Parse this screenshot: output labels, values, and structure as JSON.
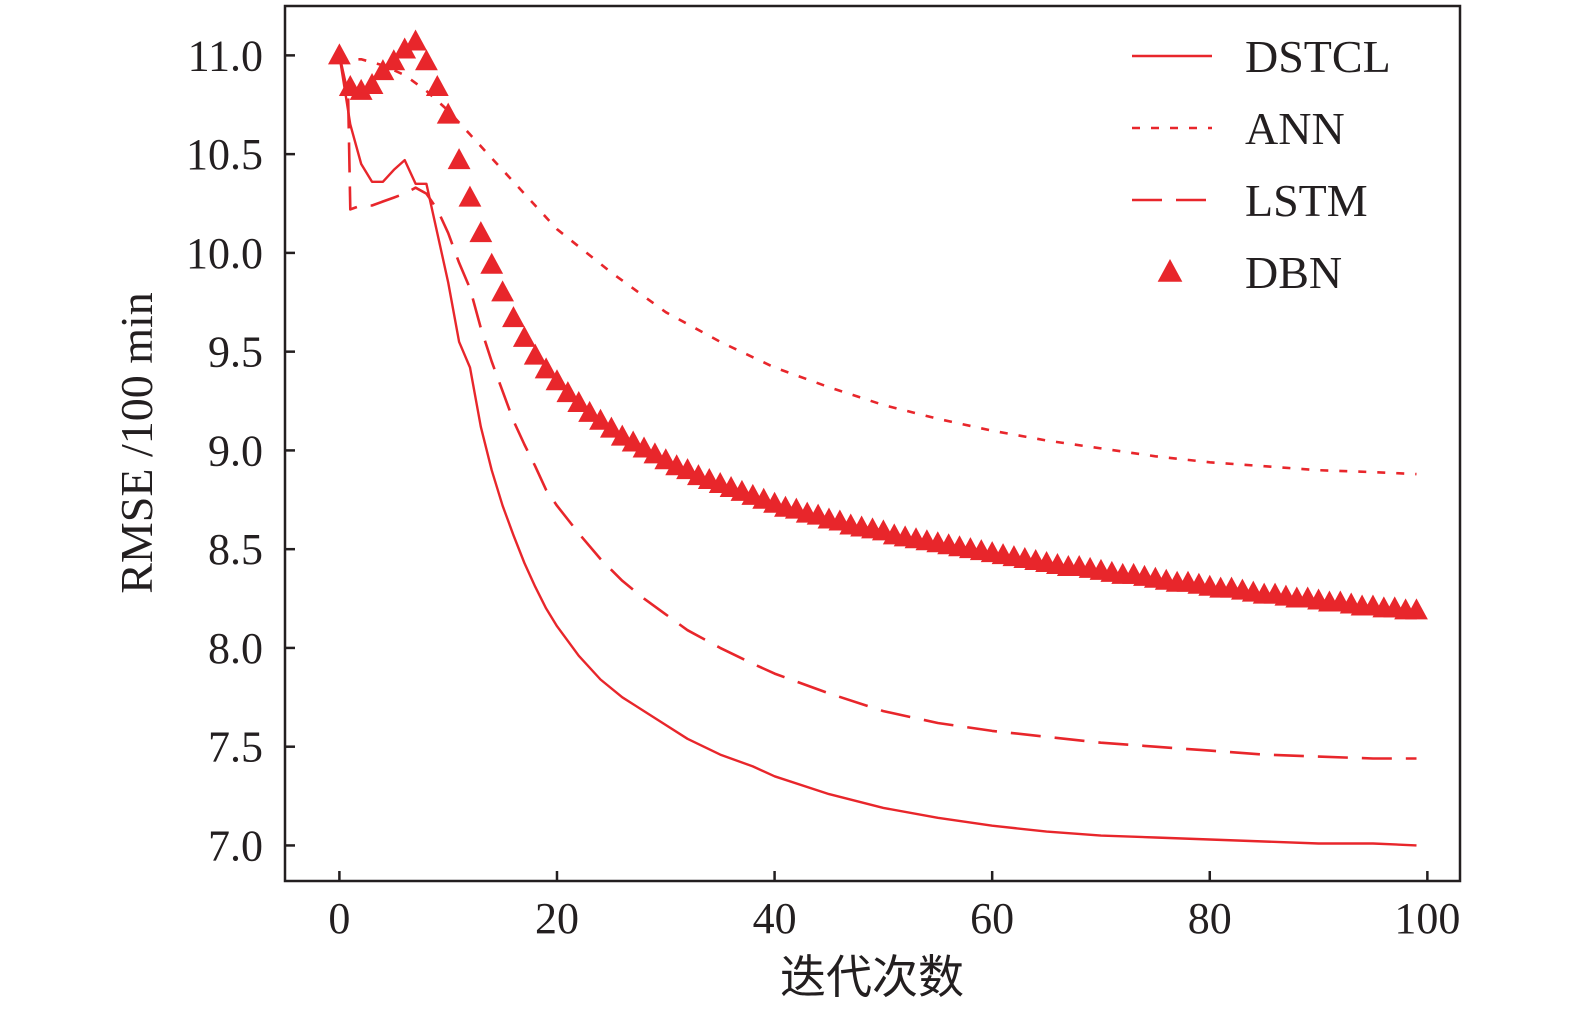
{
  "chart_data": {
    "type": "line",
    "title": "",
    "xlabel": "迭代次数",
    "ylabel": "RMSE /100 min",
    "xlim": [
      -5,
      103
    ],
    "ylim": [
      6.82,
      11.25
    ],
    "xticks": [
      0,
      20,
      40,
      60,
      80,
      100
    ],
    "yticks": [
      7.0,
      7.5,
      8.0,
      8.5,
      9.0,
      9.5,
      10.0,
      10.5,
      11.0
    ],
    "xtick_labels": [
      "0",
      "20",
      "40",
      "60",
      "80",
      "100"
    ],
    "ytick_labels": [
      "7.0",
      "7.5",
      "8.0",
      "8.5",
      "9.0",
      "9.5",
      "10.0",
      "10.5",
      "11.0"
    ],
    "grid": false,
    "legend_position": "top-right",
    "color": "#e8262b",
    "series": [
      {
        "name": "DSTCL",
        "style": "solid",
        "x": [
          0,
          1,
          2,
          3,
          4,
          5,
          6,
          7,
          8,
          9,
          10,
          11,
          12,
          13,
          14,
          15,
          16,
          17,
          18,
          19,
          20,
          22,
          24,
          26,
          28,
          30,
          32,
          35,
          38,
          40,
          45,
          50,
          55,
          60,
          65,
          70,
          75,
          80,
          85,
          90,
          95,
          99
        ],
        "y": [
          11.0,
          10.65,
          10.45,
          10.36,
          10.36,
          10.42,
          10.47,
          10.35,
          10.35,
          10.1,
          9.85,
          9.55,
          9.42,
          9.12,
          8.9,
          8.72,
          8.57,
          8.43,
          8.31,
          8.2,
          8.11,
          7.96,
          7.84,
          7.75,
          7.68,
          7.61,
          7.54,
          7.46,
          7.4,
          7.35,
          7.26,
          7.19,
          7.14,
          7.1,
          7.07,
          7.05,
          7.04,
          7.03,
          7.02,
          7.01,
          7.01,
          7.0
        ]
      },
      {
        "name": "ANN",
        "style": "dotted",
        "x": [
          0,
          2,
          4,
          6,
          8,
          10,
          12,
          14,
          16,
          18,
          20,
          25,
          30,
          35,
          40,
          45,
          50,
          55,
          60,
          65,
          70,
          75,
          80,
          85,
          90,
          95,
          99
        ],
        "y": [
          10.98,
          10.98,
          10.95,
          10.9,
          10.82,
          10.72,
          10.6,
          10.48,
          10.36,
          10.24,
          10.12,
          9.9,
          9.7,
          9.55,
          9.42,
          9.32,
          9.23,
          9.16,
          9.1,
          9.05,
          9.01,
          8.97,
          8.94,
          8.92,
          8.9,
          8.89,
          8.88
        ]
      },
      {
        "name": "LSTM",
        "style": "dashed",
        "x": [
          0,
          0.8,
          1,
          2,
          3,
          4,
          5,
          6,
          7,
          8,
          9,
          10,
          11,
          12,
          13,
          14,
          15,
          16,
          17,
          18,
          19,
          20,
          22,
          24,
          26,
          28,
          30,
          32,
          35,
          38,
          40,
          45,
          50,
          55,
          60,
          65,
          70,
          75,
          80,
          85,
          90,
          95,
          99
        ],
        "y": [
          11.0,
          10.8,
          10.22,
          10.24,
          10.24,
          10.26,
          10.28,
          10.3,
          10.33,
          10.3,
          10.22,
          10.1,
          9.95,
          9.82,
          9.62,
          9.45,
          9.3,
          9.15,
          9.03,
          8.92,
          8.8,
          8.72,
          8.58,
          8.45,
          8.34,
          8.25,
          8.17,
          8.09,
          8.0,
          7.92,
          7.87,
          7.77,
          7.68,
          7.62,
          7.58,
          7.55,
          7.52,
          7.5,
          7.48,
          7.46,
          7.45,
          7.44,
          7.44
        ]
      },
      {
        "name": "DBN",
        "style": "markers",
        "x": [
          0,
          1,
          2,
          3,
          4,
          5,
          6,
          7,
          8,
          9,
          10,
          11,
          12,
          13,
          14,
          15,
          16,
          17,
          18,
          19,
          20,
          21,
          22,
          23,
          24,
          25,
          26,
          27,
          28,
          29,
          30,
          31,
          32,
          33,
          34,
          35,
          36,
          37,
          38,
          39,
          40,
          41,
          42,
          43,
          44,
          45,
          46,
          47,
          48,
          49,
          50,
          51,
          52,
          53,
          54,
          55,
          56,
          57,
          58,
          59,
          60,
          61,
          62,
          63,
          64,
          65,
          66,
          67,
          68,
          69,
          70,
          71,
          72,
          73,
          74,
          75,
          76,
          77,
          78,
          79,
          80,
          81,
          82,
          83,
          84,
          85,
          86,
          87,
          88,
          89,
          90,
          91,
          92,
          93,
          94,
          95,
          96,
          97,
          98,
          99
        ],
        "y": [
          11.0,
          10.84,
          10.82,
          10.85,
          10.92,
          10.97,
          11.03,
          11.07,
          10.97,
          10.84,
          10.7,
          10.47,
          10.28,
          10.1,
          9.94,
          9.8,
          9.67,
          9.57,
          9.48,
          9.41,
          9.35,
          9.29,
          9.24,
          9.19,
          9.15,
          9.11,
          9.07,
          9.04,
          9.01,
          8.98,
          8.95,
          8.92,
          8.9,
          8.87,
          8.85,
          8.83,
          8.81,
          8.79,
          8.77,
          8.75,
          8.73,
          8.71,
          8.7,
          8.68,
          8.67,
          8.65,
          8.64,
          8.62,
          8.61,
          8.6,
          8.59,
          8.57,
          8.56,
          8.55,
          8.54,
          8.53,
          8.52,
          8.51,
          8.5,
          8.49,
          8.48,
          8.47,
          8.46,
          8.45,
          8.44,
          8.43,
          8.42,
          8.41,
          8.41,
          8.4,
          8.39,
          8.38,
          8.37,
          8.37,
          8.36,
          8.35,
          8.34,
          8.33,
          8.33,
          8.32,
          8.31,
          8.3,
          8.3,
          8.29,
          8.28,
          8.27,
          8.27,
          8.26,
          8.25,
          8.25,
          8.24,
          8.23,
          8.23,
          8.22,
          8.21,
          8.21,
          8.2,
          8.2,
          8.19,
          8.19
        ]
      }
    ]
  }
}
